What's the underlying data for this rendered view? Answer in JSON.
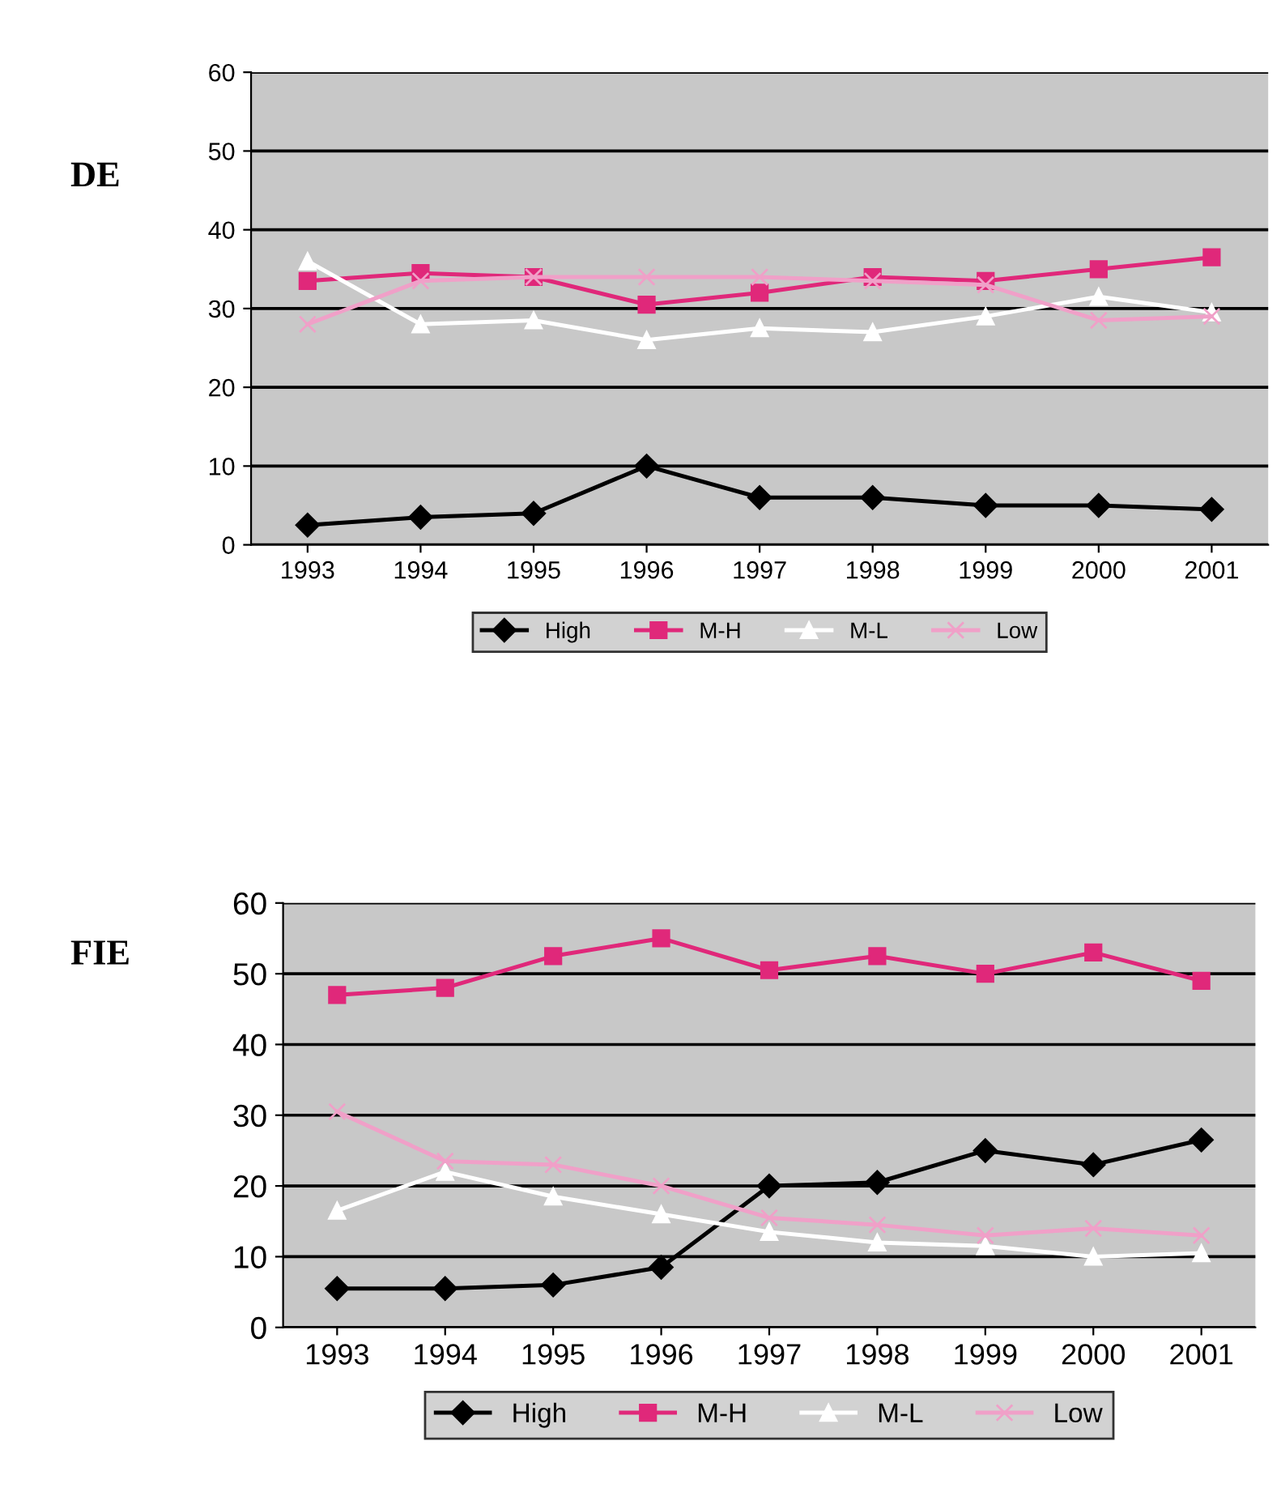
{
  "chart_data": [
    {
      "type": "line",
      "title": "DE",
      "categories": [
        "1993",
        "1994",
        "1995",
        "1996",
        "1997",
        "1998",
        "1999",
        "2000",
        "2001"
      ],
      "ylim": [
        0,
        60
      ],
      "yticks": [
        0,
        10,
        20,
        30,
        40,
        50,
        60
      ],
      "grid": "y",
      "legend": "bottom",
      "series": [
        {
          "name": "High",
          "color": "#000000",
          "marker": "diamond",
          "values": [
            2.5,
            3.5,
            4,
            10,
            6,
            6,
            5,
            5,
            4.5
          ]
        },
        {
          "name": "M-H",
          "color": "#e0287a",
          "marker": "square",
          "values": [
            33.5,
            34.5,
            34,
            30.5,
            32,
            34,
            33.5,
            35,
            36.5
          ]
        },
        {
          "name": "M-L",
          "color": "#ffffff",
          "marker": "triangle",
          "values": [
            36,
            28,
            28.5,
            26,
            27.5,
            27,
            29,
            31.5,
            29.5
          ]
        },
        {
          "name": "Low",
          "color": "#f0a0c8",
          "marker": "cross",
          "values": [
            28,
            33.5,
            34,
            34,
            34,
            33.5,
            33,
            28.5,
            29
          ]
        }
      ]
    },
    {
      "type": "line",
      "title": "FIE",
      "categories": [
        "1993",
        "1994",
        "1995",
        "1996",
        "1997",
        "1998",
        "1999",
        "2000",
        "2001"
      ],
      "ylim": [
        0,
        60
      ],
      "yticks": [
        0,
        10,
        20,
        30,
        40,
        50,
        60
      ],
      "grid": "y",
      "legend": "bottom",
      "series": [
        {
          "name": "High",
          "color": "#000000",
          "marker": "diamond",
          "values": [
            5.5,
            5.5,
            6,
            8.5,
            20,
            20.5,
            25,
            23,
            26.5
          ]
        },
        {
          "name": "M-H",
          "color": "#e0287a",
          "marker": "square",
          "values": [
            47,
            48,
            52.5,
            55,
            50.5,
            52.5,
            50,
            53,
            49
          ]
        },
        {
          "name": "M-L",
          "color": "#ffffff",
          "marker": "triangle",
          "values": [
            16.5,
            22,
            18.5,
            16,
            13.5,
            12,
            11.5,
            10,
            10.5
          ]
        },
        {
          "name": "Low",
          "color": "#f0a0c8",
          "marker": "cross",
          "values": [
            30.5,
            23.5,
            23,
            20,
            15.5,
            14.5,
            13,
            14,
            13
          ]
        }
      ]
    }
  ]
}
